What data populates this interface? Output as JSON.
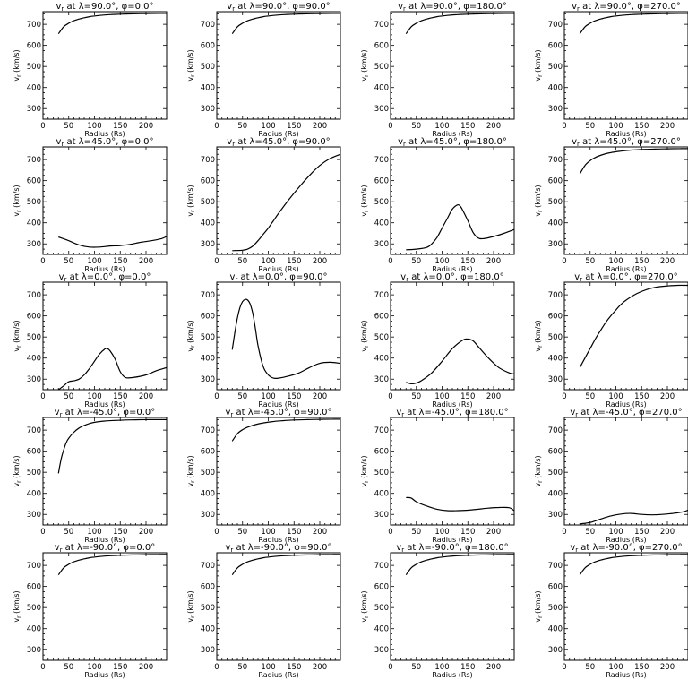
{
  "chart_data": {
    "type": "line",
    "layout": "5x4 grid",
    "xlabel": "Radius (Rs)",
    "ylabel": "vr (km/s)",
    "xlim": [
      0,
      240
    ],
    "ylim": [
      250,
      760
    ],
    "xticks": [
      0,
      50,
      100,
      150,
      200
    ],
    "yticks": [
      300,
      400,
      500,
      600,
      700
    ],
    "panels": [
      {
        "title": "vr at λ=90.0°, φ=0.0°",
        "x": [
          30,
          40,
          50,
          60,
          75,
          90,
          110,
          130,
          150,
          175,
          200,
          225,
          240
        ],
        "y": [
          655,
          688,
          705,
          717,
          728,
          736,
          742,
          746,
          748,
          750,
          751,
          752,
          752
        ]
      },
      {
        "title": "vr at λ=90.0°, φ=90.0°",
        "x": [
          30,
          40,
          50,
          60,
          75,
          90,
          110,
          130,
          150,
          175,
          200,
          225,
          240
        ],
        "y": [
          655,
          688,
          705,
          717,
          728,
          736,
          742,
          746,
          748,
          750,
          751,
          752,
          752
        ]
      },
      {
        "title": "vr at λ=90.0°, φ=180.0°",
        "x": [
          30,
          40,
          50,
          60,
          75,
          90,
          110,
          130,
          150,
          175,
          200,
          225,
          240
        ],
        "y": [
          655,
          688,
          705,
          717,
          728,
          736,
          742,
          746,
          748,
          750,
          751,
          752,
          752
        ]
      },
      {
        "title": "vr at λ=90.0°, φ=270.0°",
        "x": [
          30,
          40,
          50,
          60,
          75,
          90,
          110,
          130,
          150,
          175,
          200,
          225,
          240
        ],
        "y": [
          655,
          688,
          705,
          717,
          728,
          736,
          742,
          746,
          748,
          750,
          751,
          752,
          752
        ]
      },
      {
        "title": "vr at λ=45.0°, φ=0.0°",
        "x": [
          30,
          50,
          70,
          90,
          110,
          130,
          150,
          170,
          190,
          210,
          230,
          240
        ],
        "y": [
          333,
          315,
          295,
          285,
          285,
          290,
          292,
          298,
          308,
          315,
          325,
          335
        ]
      },
      {
        "title": "vr at λ=45.0°, φ=90.0°",
        "x": [
          30,
          50,
          60,
          70,
          80,
          90,
          100,
          110,
          120,
          140,
          160,
          180,
          200,
          220,
          240
        ],
        "y": [
          268,
          270,
          275,
          290,
          315,
          345,
          375,
          410,
          445,
          510,
          570,
          625,
          672,
          705,
          725
        ]
      },
      {
        "title": "vr at λ=45.0°, φ=180.0°",
        "x": [
          30,
          50,
          70,
          80,
          90,
          100,
          110,
          120,
          130,
          135,
          140,
          150,
          160,
          170,
          180,
          200,
          220,
          240
        ],
        "y": [
          272,
          275,
          283,
          300,
          330,
          375,
          420,
          465,
          485,
          480,
          460,
          410,
          355,
          328,
          325,
          335,
          350,
          368
        ]
      },
      {
        "title": "vr at λ=45.0°, φ=270.0°",
        "x": [
          30,
          40,
          50,
          60,
          75,
          90,
          110,
          130,
          150,
          175,
          200,
          225,
          240
        ],
        "y": [
          632,
          672,
          695,
          710,
          724,
          733,
          740,
          745,
          748,
          750,
          751,
          752,
          752
        ]
      },
      {
        "title": "vr at λ=0.0°, φ=0.0°",
        "x": [
          30,
          40,
          50,
          60,
          70,
          80,
          90,
          100,
          110,
          120,
          125,
          130,
          140,
          150,
          160,
          175,
          200,
          220,
          240
        ],
        "y": [
          250,
          268,
          288,
          292,
          300,
          320,
          350,
          385,
          420,
          443,
          445,
          435,
          395,
          335,
          308,
          308,
          320,
          340,
          355
        ]
      },
      {
        "title": "vr at λ=0.0°, φ=90.0°",
        "x": [
          30,
          35,
          40,
          45,
          50,
          55,
          60,
          65,
          70,
          75,
          80,
          90,
          100,
          110,
          120,
          140,
          160,
          180,
          200,
          220,
          240
        ],
        "y": [
          440,
          520,
          590,
          640,
          668,
          678,
          675,
          655,
          610,
          540,
          460,
          360,
          320,
          305,
          305,
          315,
          330,
          355,
          375,
          380,
          375
        ]
      },
      {
        "title": "vr at λ=0.0°, φ=180.0°",
        "x": [
          30,
          40,
          50,
          60,
          80,
          100,
          120,
          140,
          150,
          160,
          170,
          190,
          210,
          230,
          240
        ],
        "y": [
          285,
          278,
          282,
          293,
          330,
          385,
          445,
          485,
          490,
          482,
          455,
          400,
          355,
          330,
          325
        ]
      },
      {
        "title": "vr at λ=0.0°, φ=270.0°",
        "x": [
          30,
          40,
          50,
          60,
          70,
          80,
          90,
          100,
          110,
          120,
          140,
          160,
          180,
          200,
          220,
          240
        ],
        "y": [
          355,
          400,
          445,
          490,
          530,
          568,
          600,
          628,
          655,
          675,
          705,
          725,
          737,
          742,
          745,
          745
        ]
      },
      {
        "title": "vr at λ=-45.0°, φ=0.0°",
        "x": [
          30,
          35,
          40,
          45,
          50,
          60,
          70,
          80,
          90,
          100,
          120,
          140,
          160,
          180,
          200,
          220,
          240
        ],
        "y": [
          495,
          560,
          605,
          640,
          662,
          690,
          710,
          722,
          731,
          737,
          743,
          746,
          748,
          749,
          750,
          750,
          750
        ]
      },
      {
        "title": "vr at λ=-45.0°, φ=90.0°",
        "x": [
          30,
          40,
          50,
          60,
          75,
          90,
          110,
          130,
          150,
          175,
          200,
          225,
          240
        ],
        "y": [
          648,
          683,
          702,
          714,
          726,
          734,
          741,
          745,
          748,
          750,
          751,
          752,
          752
        ]
      },
      {
        "title": "vr at λ=-45.0°, φ=180.0°",
        "x": [
          30,
          40,
          50,
          70,
          90,
          110,
          130,
          150,
          170,
          190,
          210,
          230,
          240
        ],
        "y": [
          380,
          378,
          360,
          340,
          325,
          318,
          318,
          320,
          325,
          330,
          333,
          332,
          318
        ]
      },
      {
        "title": "vr at λ=-45.0°, φ=270.0°",
        "x": [
          30,
          50,
          70,
          90,
          110,
          130,
          150,
          170,
          190,
          210,
          230,
          240
        ],
        "y": [
          255,
          262,
          278,
          293,
          302,
          305,
          300,
          298,
          300,
          305,
          312,
          320
        ]
      },
      {
        "title": "vr at λ=-90.0°, φ=0.0°",
        "x": [
          30,
          40,
          50,
          60,
          75,
          90,
          110,
          130,
          150,
          175,
          200,
          225,
          240
        ],
        "y": [
          655,
          688,
          705,
          717,
          728,
          736,
          742,
          746,
          748,
          750,
          751,
          752,
          752
        ]
      },
      {
        "title": "vr at λ=-90.0°, φ=90.0°",
        "x": [
          30,
          40,
          50,
          60,
          75,
          90,
          110,
          130,
          150,
          175,
          200,
          225,
          240
        ],
        "y": [
          655,
          688,
          705,
          717,
          728,
          736,
          742,
          746,
          748,
          750,
          751,
          752,
          752
        ]
      },
      {
        "title": "vr at λ=-90.0°, φ=180.0°",
        "x": [
          30,
          40,
          50,
          60,
          75,
          90,
          110,
          130,
          150,
          175,
          200,
          225,
          240
        ],
        "y": [
          655,
          688,
          705,
          717,
          728,
          736,
          742,
          746,
          748,
          750,
          751,
          752,
          752
        ]
      },
      {
        "title": "vr at λ=-90.0°, φ=270.0°",
        "x": [
          30,
          40,
          50,
          60,
          75,
          90,
          110,
          130,
          150,
          175,
          200,
          225,
          240
        ],
        "y": [
          655,
          688,
          705,
          717,
          728,
          736,
          742,
          746,
          748,
          750,
          751,
          752,
          752
        ]
      }
    ]
  }
}
